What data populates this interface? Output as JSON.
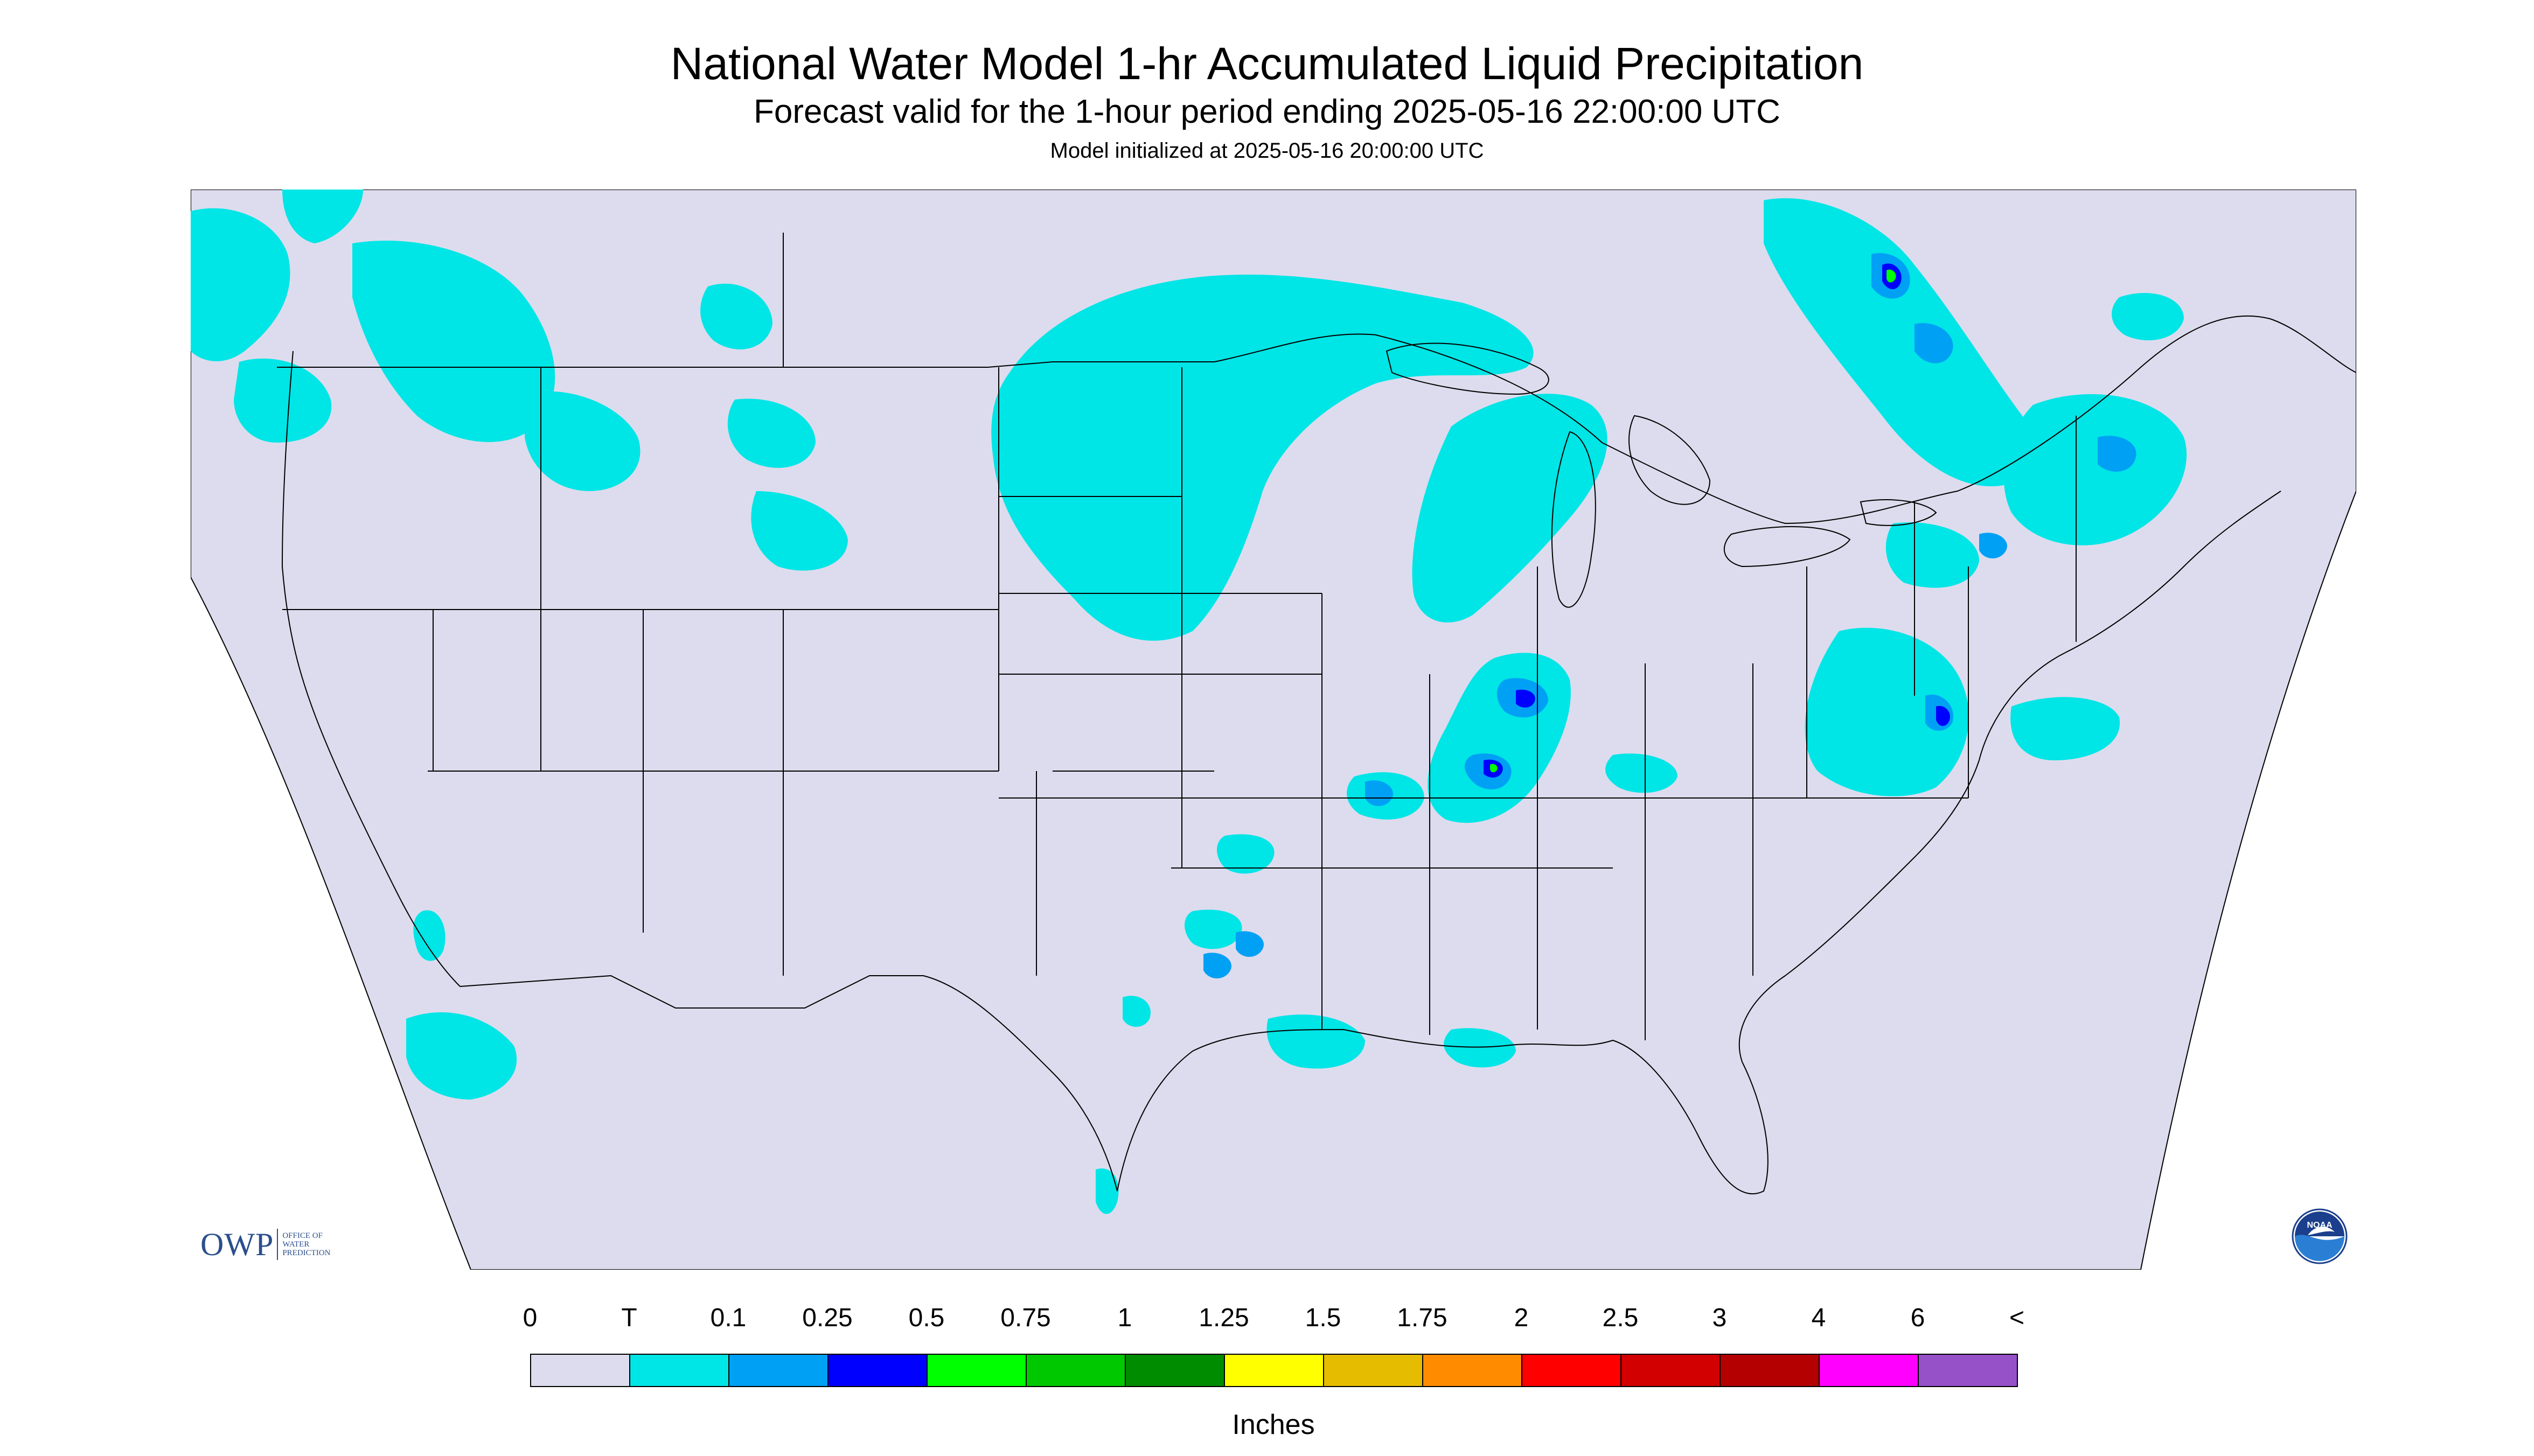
{
  "title": "National Water Model 1-hr Accumulated Liquid Precipitation",
  "subtitle": "Forecast valid for the 1-hour period ending 2025-05-16 22:00:00 UTC",
  "init_text": "Model initialized at 2025-05-16 20:00:00 UTC",
  "logos": {
    "owp": {
      "mark": "OWP",
      "line1": "OFFICE OF",
      "line2": "WATER",
      "line3": "PREDICTION"
    },
    "noaa": {
      "text": "NOAA"
    }
  },
  "map": {
    "background_color": "#dcdcee",
    "outside_color": "#ffffff",
    "trace_color": "#00e5e5",
    "light_color": "#00a0f5",
    "moderate_color": "#0000ff",
    "heavy_color": "#00ff00",
    "border_color": "#000000"
  },
  "legend": {
    "labels": [
      "0",
      "T",
      "0.1",
      "0.25",
      "0.5",
      "0.75",
      "1",
      "1.25",
      "1.5",
      "1.75",
      "2",
      "2.5",
      "3",
      "4",
      "6",
      "<"
    ],
    "colors": [
      "#dcdcee",
      "#00e5e5",
      "#00a0f5",
      "#0000ff",
      "#00ff00",
      "#00c800",
      "#008c00",
      "#ffff00",
      "#e6bc00",
      "#ff8c00",
      "#ff0000",
      "#d20000",
      "#b40000",
      "#ff00ff",
      "#9650c8"
    ],
    "units": "Inches"
  }
}
